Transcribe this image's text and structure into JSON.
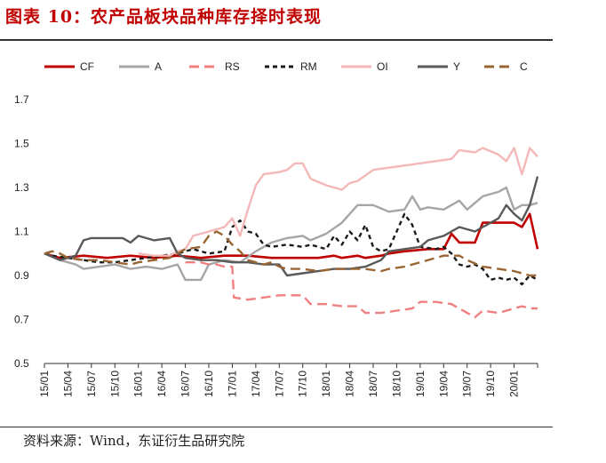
{
  "header": {
    "title": "图表 10：农产品板块品种库存择时表现"
  },
  "footer": {
    "source": "资料来源：Wind，东证衍生品研究院"
  },
  "chart_data": {
    "type": "line",
    "title": "",
    "xlabel": "",
    "ylabel": "",
    "ylim": [
      0.5,
      1.7
    ],
    "yticks": [
      "0.5",
      "0.7",
      "0.9",
      "1.1",
      "1.3",
      "1.5",
      "1.7"
    ],
    "xticks": [
      "15/01",
      "15/04",
      "15/07",
      "15/10",
      "16/01",
      "16/04",
      "16/07",
      "16/10",
      "17/01",
      "17/04",
      "17/07",
      "17/10",
      "18/01",
      "18/04",
      "18/07",
      "18/10",
      "19/01",
      "19/04",
      "19/07",
      "19/10",
      "20/01"
    ],
    "x_range_months": [
      0,
      63
    ],
    "grid": false,
    "legend_position": "top",
    "series": [
      {
        "name": "CF",
        "color": "#c00000",
        "dash": "solid",
        "width": 2.6,
        "points": [
          [
            0,
            1.0
          ],
          [
            2,
            0.98
          ],
          [
            5,
            0.99
          ],
          [
            8,
            0.98
          ],
          [
            11,
            0.99
          ],
          [
            14,
            0.98
          ],
          [
            17,
            0.99
          ],
          [
            20,
            0.98
          ],
          [
            23,
            0.99
          ],
          [
            26,
            0.99
          ],
          [
            29,
            0.98
          ],
          [
            32,
            0.98
          ],
          [
            35,
            0.98
          ],
          [
            37,
            0.99
          ],
          [
            38,
            0.98
          ],
          [
            40,
            0.99
          ],
          [
            41,
            0.98
          ],
          [
            43,
            0.99
          ],
          [
            44,
            1.0
          ],
          [
            46,
            1.01
          ],
          [
            49,
            1.02
          ],
          [
            51,
            1.02
          ],
          [
            52,
            1.09
          ],
          [
            53,
            1.05
          ],
          [
            55,
            1.05
          ],
          [
            56,
            1.14
          ],
          [
            58,
            1.14
          ],
          [
            60,
            1.14
          ],
          [
            61,
            1.12
          ],
          [
            62,
            1.18
          ],
          [
            62.5,
            1.1
          ],
          [
            63,
            1.02
          ]
        ]
      },
      {
        "name": "A",
        "color": "#a6a6a6",
        "dash": "solid",
        "width": 2.4,
        "points": [
          [
            0,
            1.0
          ],
          [
            2,
            0.97
          ],
          [
            4,
            0.95
          ],
          [
            5,
            0.93
          ],
          [
            7,
            0.94
          ],
          [
            9,
            0.95
          ],
          [
            11,
            0.93
          ],
          [
            13,
            0.94
          ],
          [
            15,
            0.93
          ],
          [
            17,
            0.95
          ],
          [
            18,
            0.88
          ],
          [
            20,
            0.88
          ],
          [
            21,
            0.95
          ],
          [
            23,
            0.97
          ],
          [
            25,
            0.96
          ],
          [
            27,
            1.01
          ],
          [
            29,
            1.05
          ],
          [
            31,
            1.07
          ],
          [
            33,
            1.08
          ],
          [
            34,
            1.06
          ],
          [
            36,
            1.09
          ],
          [
            38,
            1.14
          ],
          [
            39,
            1.18
          ],
          [
            40,
            1.22
          ],
          [
            42,
            1.22
          ],
          [
            44,
            1.19
          ],
          [
            46,
            1.2
          ],
          [
            47,
            1.26
          ],
          [
            48,
            1.2
          ],
          [
            49,
            1.21
          ],
          [
            51,
            1.2
          ],
          [
            53,
            1.24
          ],
          [
            54,
            1.2
          ],
          [
            56,
            1.26
          ],
          [
            58,
            1.28
          ],
          [
            59,
            1.3
          ],
          [
            60,
            1.2
          ],
          [
            61,
            1.22
          ],
          [
            62,
            1.22
          ],
          [
            63,
            1.23
          ]
        ]
      },
      {
        "name": "RS",
        "color": "#f08080",
        "dash": "dash",
        "width": 2.4,
        "points": [
          [
            18,
            0.96
          ],
          [
            20,
            0.96
          ],
          [
            21,
            0.95
          ],
          [
            22,
            0.95
          ],
          [
            23,
            0.94
          ],
          [
            24,
            0.94
          ],
          [
            24.2,
            0.8
          ],
          [
            26,
            0.79
          ],
          [
            28,
            0.8
          ],
          [
            30,
            0.81
          ],
          [
            31,
            0.81
          ],
          [
            33,
            0.81
          ],
          [
            34,
            0.77
          ],
          [
            36,
            0.77
          ],
          [
            38,
            0.76
          ],
          [
            40,
            0.76
          ],
          [
            41,
            0.73
          ],
          [
            43,
            0.73
          ],
          [
            45,
            0.74
          ],
          [
            47,
            0.75
          ],
          [
            48,
            0.78
          ],
          [
            50,
            0.78
          ],
          [
            52,
            0.77
          ],
          [
            54,
            0.73
          ],
          [
            55,
            0.71
          ],
          [
            56,
            0.74
          ],
          [
            58,
            0.73
          ],
          [
            60,
            0.75
          ],
          [
            61,
            0.76
          ],
          [
            62,
            0.75
          ],
          [
            63,
            0.75
          ]
        ]
      },
      {
        "name": "RM",
        "color": "#1a1a1a",
        "dash": "short",
        "width": 2.4,
        "points": [
          [
            0,
            1.0
          ],
          [
            1,
            0.99
          ],
          [
            3,
            0.98
          ],
          [
            5,
            0.97
          ],
          [
            7,
            0.96
          ],
          [
            9,
            0.96
          ],
          [
            11,
            0.97
          ],
          [
            13,
            0.98
          ],
          [
            15,
            0.99
          ],
          [
            17,
            1.0
          ],
          [
            19,
            1.02
          ],
          [
            21,
            1.0
          ],
          [
            23,
            1.01
          ],
          [
            24,
            1.12
          ],
          [
            25,
            1.15
          ],
          [
            26,
            1.1
          ],
          [
            27,
            1.09
          ],
          [
            28,
            1.04
          ],
          [
            29,
            1.03
          ],
          [
            31,
            1.04
          ],
          [
            33,
            1.03
          ],
          [
            34,
            1.04
          ],
          [
            36,
            1.02
          ],
          [
            37,
            1.08
          ],
          [
            38,
            1.04
          ],
          [
            39,
            1.1
          ],
          [
            40,
            1.06
          ],
          [
            41,
            1.13
          ],
          [
            42,
            1.03
          ],
          [
            43,
            1.01
          ],
          [
            44,
            1.02
          ],
          [
            45,
            1.1
          ],
          [
            46,
            1.18
          ],
          [
            47,
            1.13
          ],
          [
            48,
            1.03
          ],
          [
            50,
            1.02
          ],
          [
            51,
            1.03
          ],
          [
            52,
            1.0
          ],
          [
            53,
            0.95
          ],
          [
            54,
            0.94
          ],
          [
            55,
            0.95
          ],
          [
            56,
            0.93
          ],
          [
            57,
            0.88
          ],
          [
            58,
            0.89
          ],
          [
            59,
            0.88
          ],
          [
            60,
            0.89
          ],
          [
            61,
            0.86
          ],
          [
            62,
            0.9
          ],
          [
            63,
            0.88
          ]
        ]
      },
      {
        "name": "OI",
        "color": "#f4b8b8",
        "dash": "solid",
        "width": 2.4,
        "points": [
          [
            12,
            1.0
          ],
          [
            14,
            0.99
          ],
          [
            16,
            0.99
          ],
          [
            17,
            1.01
          ],
          [
            18,
            1.02
          ],
          [
            19,
            1.08
          ],
          [
            21,
            1.1
          ],
          [
            23,
            1.12
          ],
          [
            24,
            1.16
          ],
          [
            25,
            1.08
          ],
          [
            26,
            1.2
          ],
          [
            27,
            1.31
          ],
          [
            28,
            1.36
          ],
          [
            30,
            1.37
          ],
          [
            31,
            1.38
          ],
          [
            32,
            1.41
          ],
          [
            33,
            1.41
          ],
          [
            34,
            1.34
          ],
          [
            36,
            1.31
          ],
          [
            38,
            1.29
          ],
          [
            39,
            1.32
          ],
          [
            40,
            1.33
          ],
          [
            42,
            1.38
          ],
          [
            44,
            1.39
          ],
          [
            46,
            1.4
          ],
          [
            48,
            1.41
          ],
          [
            50,
            1.42
          ],
          [
            52,
            1.43
          ],
          [
            53,
            1.47
          ],
          [
            55,
            1.46
          ],
          [
            56,
            1.48
          ],
          [
            58,
            1.45
          ],
          [
            59,
            1.42
          ],
          [
            60,
            1.48
          ],
          [
            61,
            1.36
          ],
          [
            62,
            1.48
          ],
          [
            63,
            1.44
          ]
        ]
      },
      {
        "name": "Y",
        "color": "#595959",
        "dash": "solid",
        "width": 2.4,
        "points": [
          [
            0,
            1.0
          ],
          [
            2,
            0.97
          ],
          [
            4,
            0.99
          ],
          [
            5,
            1.06
          ],
          [
            6,
            1.07
          ],
          [
            8,
            1.07
          ],
          [
            10,
            1.07
          ],
          [
            11,
            1.05
          ],
          [
            12,
            1.08
          ],
          [
            14,
            1.06
          ],
          [
            16,
            1.07
          ],
          [
            17,
            1.0
          ],
          [
            18,
            0.98
          ],
          [
            20,
            0.97
          ],
          [
            22,
            0.97
          ],
          [
            24,
            0.96
          ],
          [
            26,
            0.96
          ],
          [
            28,
            0.95
          ],
          [
            30,
            0.95
          ],
          [
            31,
            0.9
          ],
          [
            33,
            0.91
          ],
          [
            35,
            0.92
          ],
          [
            37,
            0.93
          ],
          [
            39,
            0.93
          ],
          [
            41,
            0.94
          ],
          [
            43,
            0.97
          ],
          [
            44,
            1.01
          ],
          [
            46,
            1.02
          ],
          [
            48,
            1.03
          ],
          [
            49,
            1.06
          ],
          [
            51,
            1.08
          ],
          [
            53,
            1.12
          ],
          [
            55,
            1.1
          ],
          [
            56,
            1.12
          ],
          [
            58,
            1.16
          ],
          [
            59,
            1.22
          ],
          [
            60,
            1.18
          ],
          [
            61,
            1.15
          ],
          [
            62,
            1.22
          ],
          [
            63,
            1.35
          ]
        ]
      },
      {
        "name": "C",
        "color": "#996633",
        "dash": "dash",
        "width": 2.4,
        "points": [
          [
            0,
            1.0
          ],
          [
            1,
            1.01
          ],
          [
            2,
            1.0
          ],
          [
            3,
            0.98
          ],
          [
            5,
            0.97
          ],
          [
            7,
            0.97
          ],
          [
            9,
            0.96
          ],
          [
            11,
            0.95
          ],
          [
            12,
            0.96
          ],
          [
            14,
            0.97
          ],
          [
            16,
            0.98
          ],
          [
            18,
            1.02
          ],
          [
            20,
            1.03
          ],
          [
            21,
            1.08
          ],
          [
            22,
            1.1
          ],
          [
            23,
            1.08
          ],
          [
            24,
            1.04
          ],
          [
            25,
            1.01
          ],
          [
            26,
            0.97
          ],
          [
            27,
            0.96
          ],
          [
            28,
            0.95
          ],
          [
            29,
            0.96
          ],
          [
            30,
            0.94
          ],
          [
            31,
            0.93
          ],
          [
            33,
            0.93
          ],
          [
            35,
            0.92
          ],
          [
            37,
            0.93
          ],
          [
            39,
            0.93
          ],
          [
            41,
            0.93
          ],
          [
            43,
            0.92
          ],
          [
            44,
            0.93
          ],
          [
            46,
            0.94
          ],
          [
            48,
            0.96
          ],
          [
            50,
            0.98
          ],
          [
            51,
            0.99
          ],
          [
            53,
            0.99
          ],
          [
            54,
            0.97
          ],
          [
            56,
            0.94
          ],
          [
            58,
            0.93
          ],
          [
            60,
            0.92
          ],
          [
            61,
            0.91
          ],
          [
            62,
            0.9
          ],
          [
            63,
            0.9
          ]
        ]
      }
    ]
  }
}
